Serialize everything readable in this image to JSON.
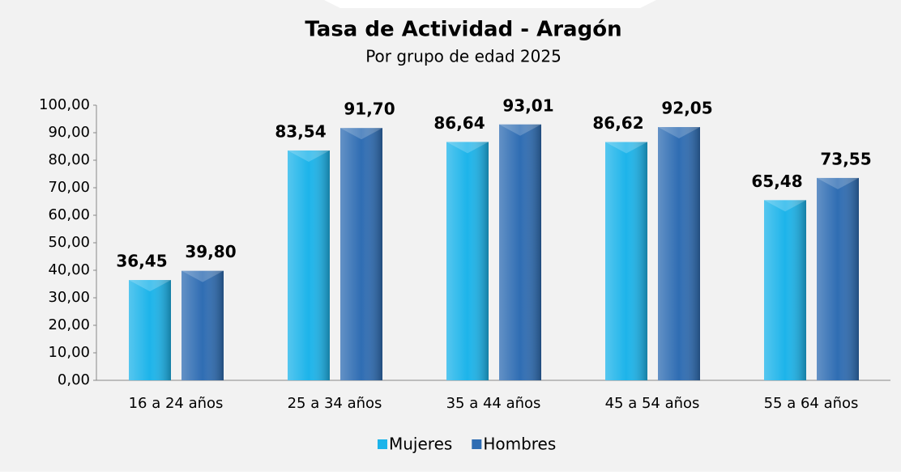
{
  "chart_data": {
    "type": "bar",
    "title": "Tasa de Actividad - Aragón",
    "subtitle": "Por grupo de edad 2025",
    "categories": [
      "16 a 24 años",
      "25 a 34 años",
      "35 a 44 años",
      "45 a 54 años",
      "55 a 64 años"
    ],
    "series": [
      {
        "name": "Mujeres",
        "color": "#1db4ea",
        "values": [
          36.45,
          83.54,
          86.64,
          86.62,
          65.48
        ],
        "value_labels": [
          "36,45",
          "83,54",
          "86,64",
          "86,62",
          "65,48"
        ]
      },
      {
        "name": "Hombres",
        "color": "#2f6db3",
        "values": [
          39.8,
          91.7,
          93.01,
          92.05,
          73.55
        ],
        "value_labels": [
          "39,80",
          "91,70",
          "93,01",
          "92,05",
          "73,55"
        ]
      }
    ],
    "ylim": [
      0,
      100
    ],
    "yticks": [
      {
        "value": 0,
        "label": "0,00"
      },
      {
        "value": 10,
        "label": "10,00"
      },
      {
        "value": 20,
        "label": "20,00"
      },
      {
        "value": 30,
        "label": "30,00"
      },
      {
        "value": 40,
        "label": "40,00"
      },
      {
        "value": 50,
        "label": "50,00"
      },
      {
        "value": 60,
        "label": "60,00"
      },
      {
        "value": 70,
        "label": "70,00"
      },
      {
        "value": 80,
        "label": "80,00"
      },
      {
        "value": 90,
        "label": "90,00"
      },
      {
        "value": 100,
        "label": "100,00"
      }
    ],
    "grid": false,
    "legend": "bottom"
  }
}
